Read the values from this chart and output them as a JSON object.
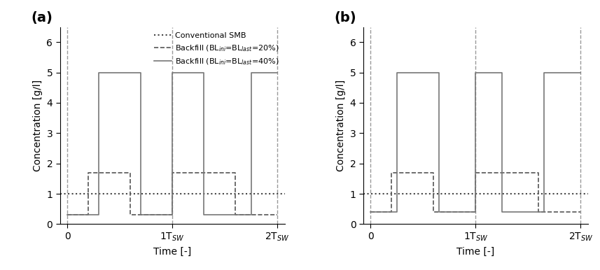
{
  "title_a": "(a)",
  "title_b": "(b)",
  "ylabel": "Concentration [g/l]",
  "xlabel": "Time [-]",
  "ylim": [
    0,
    6.5
  ],
  "yticks": [
    0,
    1,
    2,
    3,
    4,
    5,
    6
  ],
  "xtick_labels": [
    "0",
    "1T$_{SW}$",
    "2T$_{SW}$"
  ],
  "xtick_positions": [
    0.0,
    1.0,
    2.0
  ],
  "conventional_smb_level": 1.0,
  "dotted_color": "#444444",
  "vline_positions": [
    0.0,
    1.0,
    2.0
  ],
  "vline_color": "#999999",
  "vline_style": "--",
  "dashed_label": "Backfill (BL$_{ini}$=BL$_{last}$=20%)",
  "solid_label": "Backfill (BL$_{ini}$=BL$_{last}$=40%)",
  "smb_label": "Conventional SMB",
  "plot_a_dashed": {
    "x": [
      0.0,
      0.2,
      0.2,
      0.6,
      0.6,
      1.0,
      1.0,
      1.2,
      1.2,
      1.6,
      1.6,
      2.0
    ],
    "y": [
      0.3,
      0.3,
      1.7,
      1.7,
      0.3,
      0.3,
      1.7,
      1.7,
      1.7,
      1.7,
      0.3,
      0.3
    ]
  },
  "plot_a_solid": {
    "x": [
      0.0,
      0.3,
      0.3,
      0.7,
      0.7,
      1.0,
      1.0,
      1.3,
      1.3,
      1.75,
      1.75,
      2.0
    ],
    "y": [
      0.3,
      0.3,
      5.0,
      5.0,
      0.3,
      0.3,
      5.0,
      5.0,
      0.3,
      0.3,
      5.0,
      5.0
    ]
  },
  "plot_b_dashed": {
    "x": [
      0.0,
      0.2,
      0.2,
      0.6,
      0.6,
      1.0,
      1.0,
      1.2,
      1.2,
      1.6,
      1.6,
      2.0
    ],
    "y": [
      0.4,
      0.4,
      1.7,
      1.7,
      0.4,
      0.4,
      1.7,
      1.7,
      1.7,
      1.7,
      0.4,
      0.4
    ]
  },
  "plot_b_solid": {
    "x": [
      0.0,
      0.25,
      0.25,
      0.65,
      0.65,
      1.0,
      1.0,
      1.25,
      1.25,
      1.65,
      1.65,
      2.0
    ],
    "y": [
      0.4,
      0.4,
      5.0,
      5.0,
      0.4,
      0.4,
      5.0,
      5.0,
      0.4,
      0.4,
      5.0,
      5.0
    ]
  },
  "dashed_color": "#555555",
  "solid_color": "#777777",
  "figsize": [
    8.57,
    3.86
  ],
  "dpi": 100,
  "legend_fontsize": 8,
  "axis_label_fontsize": 10,
  "tick_fontsize": 10,
  "panel_label_fontsize": 14
}
